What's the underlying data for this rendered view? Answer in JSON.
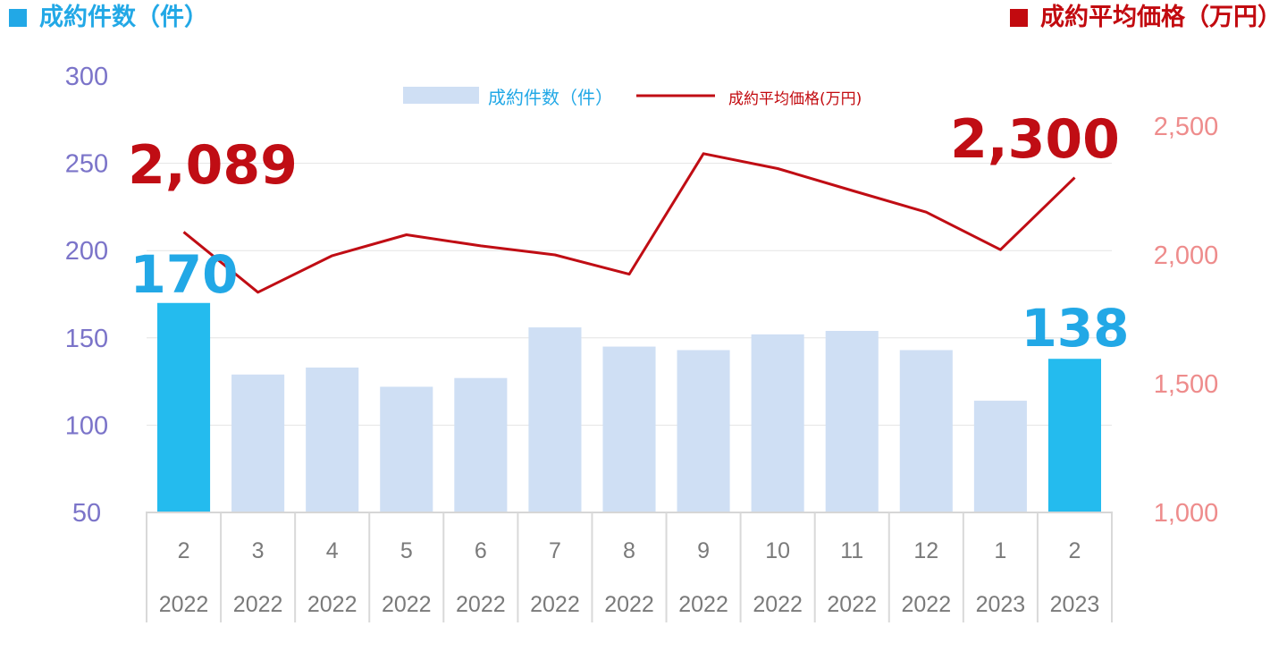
{
  "header": {
    "left_title": "成約件数（件）",
    "right_title": "成約平均価格（万円）"
  },
  "legend": {
    "bar_label": "成約件数（件）",
    "line_label": "成約平均価格(万円)"
  },
  "colors": {
    "bar": "#cfdff4",
    "bar_highlight": "#24bbee",
    "line": "#c00d14",
    "left_axis": "#7b74c9",
    "right_axis": "#ee8c8c",
    "left_title": "#22a8e6",
    "right_title": "#c20a0f",
    "x_labels": "#7a7a7a",
    "grid": "#e4e4e4"
  },
  "chart_data": {
    "type": "bar+line",
    "categories": [
      {
        "month": "2",
        "year": "2022"
      },
      {
        "month": "3",
        "year": "2022"
      },
      {
        "month": "4",
        "year": "2022"
      },
      {
        "month": "5",
        "year": "2022"
      },
      {
        "month": "6",
        "year": "2022"
      },
      {
        "month": "7",
        "year": "2022"
      },
      {
        "month": "8",
        "year": "2022"
      },
      {
        "month": "9",
        "year": "2022"
      },
      {
        "month": "10",
        "year": "2022"
      },
      {
        "month": "11",
        "year": "2022"
      },
      {
        "month": "12",
        "year": "2022"
      },
      {
        "month": "1",
        "year": "2023"
      },
      {
        "month": "2",
        "year": "2023"
      }
    ],
    "series": [
      {
        "name": "成約件数（件）",
        "type": "bar",
        "axis": "left",
        "values": [
          170,
          129,
          133,
          122,
          127,
          156,
          145,
          143,
          152,
          154,
          143,
          114,
          138
        ],
        "highlight": [
          0,
          12
        ]
      },
      {
        "name": "成約平均価格(万円)",
        "type": "line",
        "axis": "right",
        "values": [
          2089,
          1855,
          1997,
          2078,
          2035,
          2000,
          1925,
          2393,
          2335,
          2250,
          2166,
          2020,
          2300
        ]
      }
    ],
    "left_axis": {
      "min": 50,
      "max": 300,
      "ticks": [
        "50",
        "100",
        "150",
        "200",
        "250",
        "300"
      ]
    },
    "right_axis": {
      "min": 1000,
      "max": 2500,
      "ticks": [
        "1,000",
        "1,500",
        "2,000",
        "2,500"
      ]
    },
    "annotations": {
      "bar_first": "170",
      "bar_last": "138",
      "line_first": "2,089",
      "line_last": "2,300"
    },
    "grid": true,
    "legend_position": "top-center"
  }
}
